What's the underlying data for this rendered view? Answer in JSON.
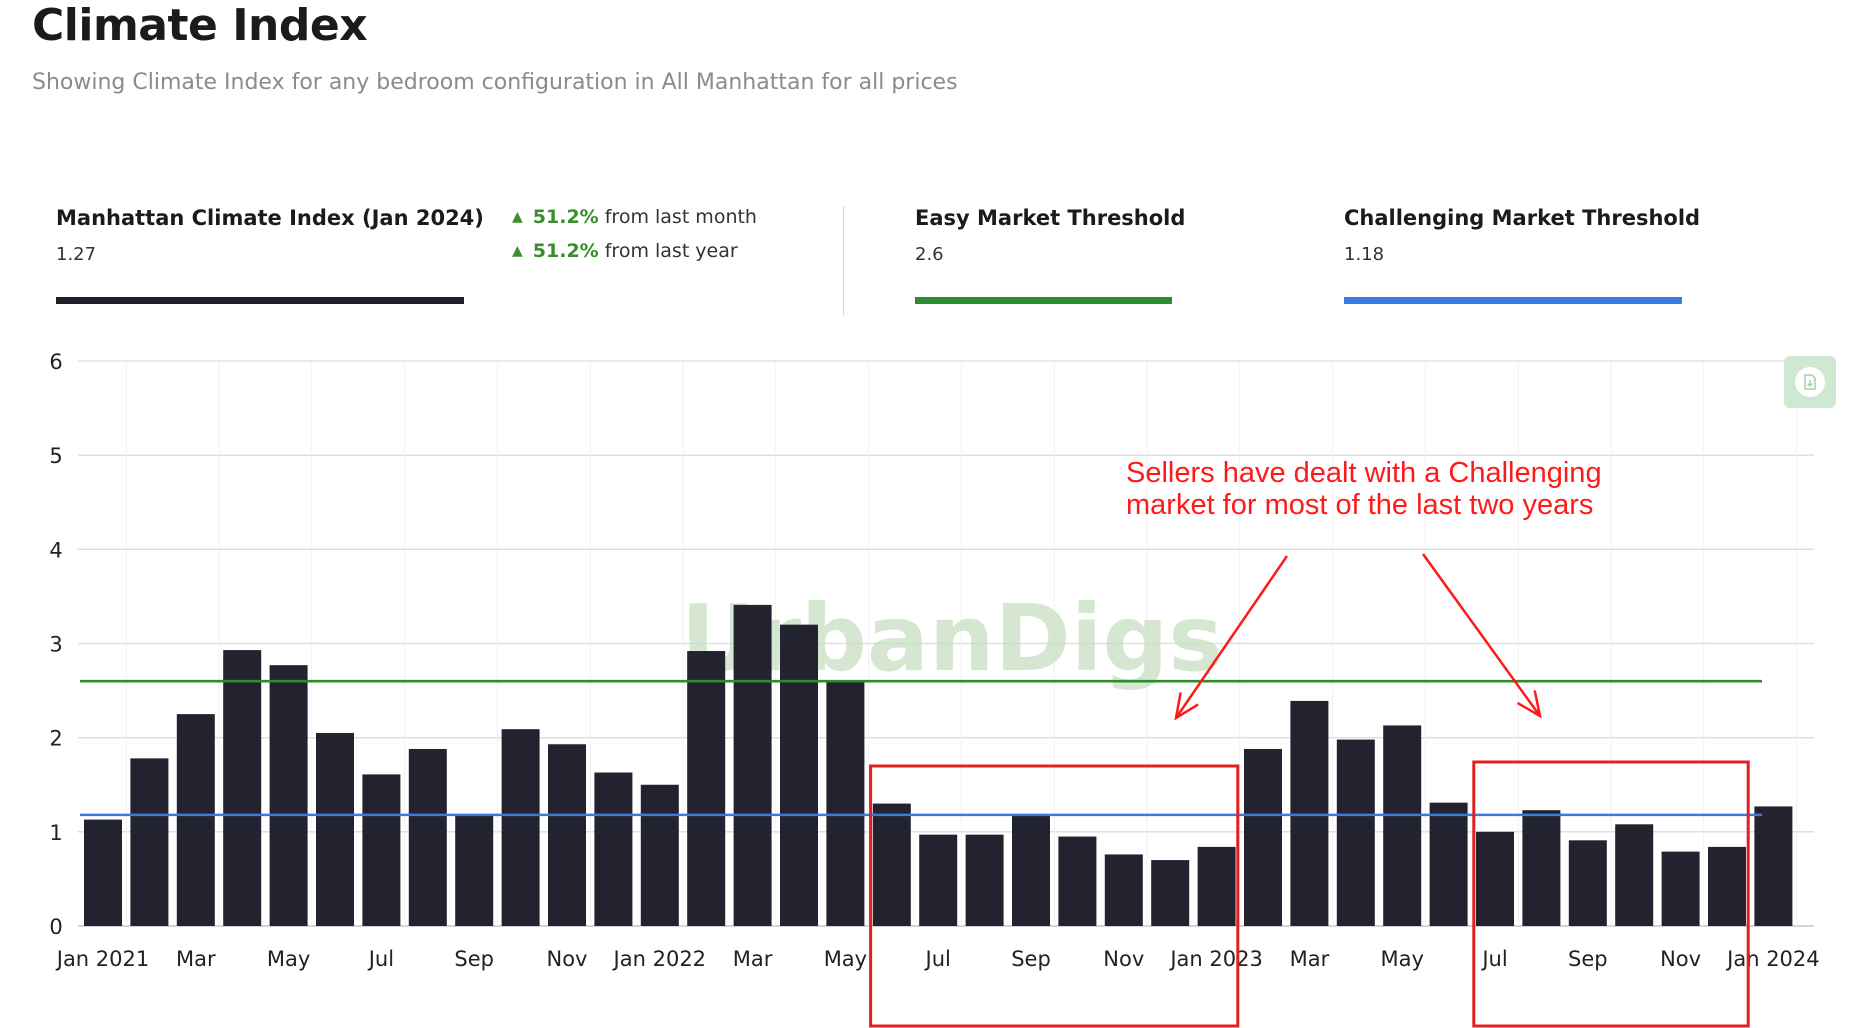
{
  "header": {
    "title": "Climate Index",
    "subtitle": "Showing Climate Index for any bedroom configuration in All Manhattan for all prices"
  },
  "stats": {
    "index": {
      "name": "Manhattan Climate Index  (Jan 2024)",
      "value": "1.27",
      "color": "#1f1f2b"
    },
    "changes": [
      {
        "arrow": "▲",
        "pct": "51.2%",
        "text": " from last month"
      },
      {
        "arrow": "▲",
        "pct": "51.2%",
        "text": " from last year"
      }
    ],
    "easy": {
      "name": "Easy Market Threshold",
      "value": "2.6",
      "color": "#2e8b2e"
    },
    "challenging": {
      "name": "Challenging Market Threshold",
      "value": "1.18",
      "color": "#3a7be0"
    }
  },
  "watermark": "UrbanDigs",
  "annotation": {
    "lines": [
      "Sellers have dealt with a Challenging",
      "market for most of the last two years"
    ],
    "color": "#ff1a1a"
  },
  "export_icon": "document-export-icon",
  "chart_data": {
    "type": "bar",
    "ylim": [
      0,
      6
    ],
    "yticks": [
      "0",
      "1",
      "2",
      "3",
      "4",
      "5",
      "6"
    ],
    "grid": true,
    "bar_color": "#232330",
    "categories": [
      "Jan 2021",
      "Feb 2021",
      "Mar 2021",
      "Apr 2021",
      "May 2021",
      "Jun 2021",
      "Jul 2021",
      "Aug 2021",
      "Sep 2021",
      "Oct 2021",
      "Nov 2021",
      "Dec 2021",
      "Jan 2022",
      "Feb 2022",
      "Mar 2022",
      "Apr 2022",
      "May 2022",
      "Jun 2022",
      "Jul 2022",
      "Aug 2022",
      "Sep 2022",
      "Oct 2022",
      "Nov 2022",
      "Dec 2022",
      "Jan 2023",
      "Feb 2023",
      "Mar 2023",
      "Apr 2023",
      "May 2023",
      "Jun 2023",
      "Jul 2023",
      "Aug 2023",
      "Sep 2023",
      "Oct 2023",
      "Nov 2023",
      "Dec 2023",
      "Jan 2024"
    ],
    "values": [
      1.13,
      1.78,
      2.25,
      2.93,
      2.77,
      2.05,
      1.61,
      1.88,
      1.18,
      2.09,
      1.93,
      1.63,
      1.5,
      2.92,
      3.41,
      3.2,
      2.6,
      1.3,
      0.97,
      0.97,
      1.17,
      0.95,
      0.76,
      0.7,
      0.84,
      1.88,
      2.39,
      1.98,
      2.13,
      1.31,
      1.0,
      1.23,
      0.91,
      1.08,
      0.79,
      0.84,
      1.27
    ],
    "xtick_labels": [
      "Jan 2021",
      "",
      "Mar",
      "",
      "May",
      "",
      "Jul",
      "",
      "Sep",
      "",
      "Nov",
      "",
      "Jan 2022",
      "",
      "Mar",
      "",
      "May",
      "",
      "Jul",
      "",
      "Sep",
      "",
      "Nov",
      "",
      "Jan 2023",
      "",
      "Mar",
      "",
      "May",
      "",
      "Jul",
      "",
      "Sep",
      "",
      "Nov",
      "",
      "Jan 2024"
    ],
    "thresholds": [
      {
        "name": "Easy Market Threshold",
        "value": 2.6,
        "color": "#2e8b2e"
      },
      {
        "name": "Challenging Market Threshold",
        "value": 1.18,
        "color": "#3a7be0"
      }
    ],
    "highlight_ranges": [
      {
        "from": "Jun 2022",
        "to": "Jan 2023",
        "color": "#e02020"
      },
      {
        "from": "Jul 2023",
        "to": "Dec 2023",
        "color": "#e02020"
      }
    ]
  }
}
